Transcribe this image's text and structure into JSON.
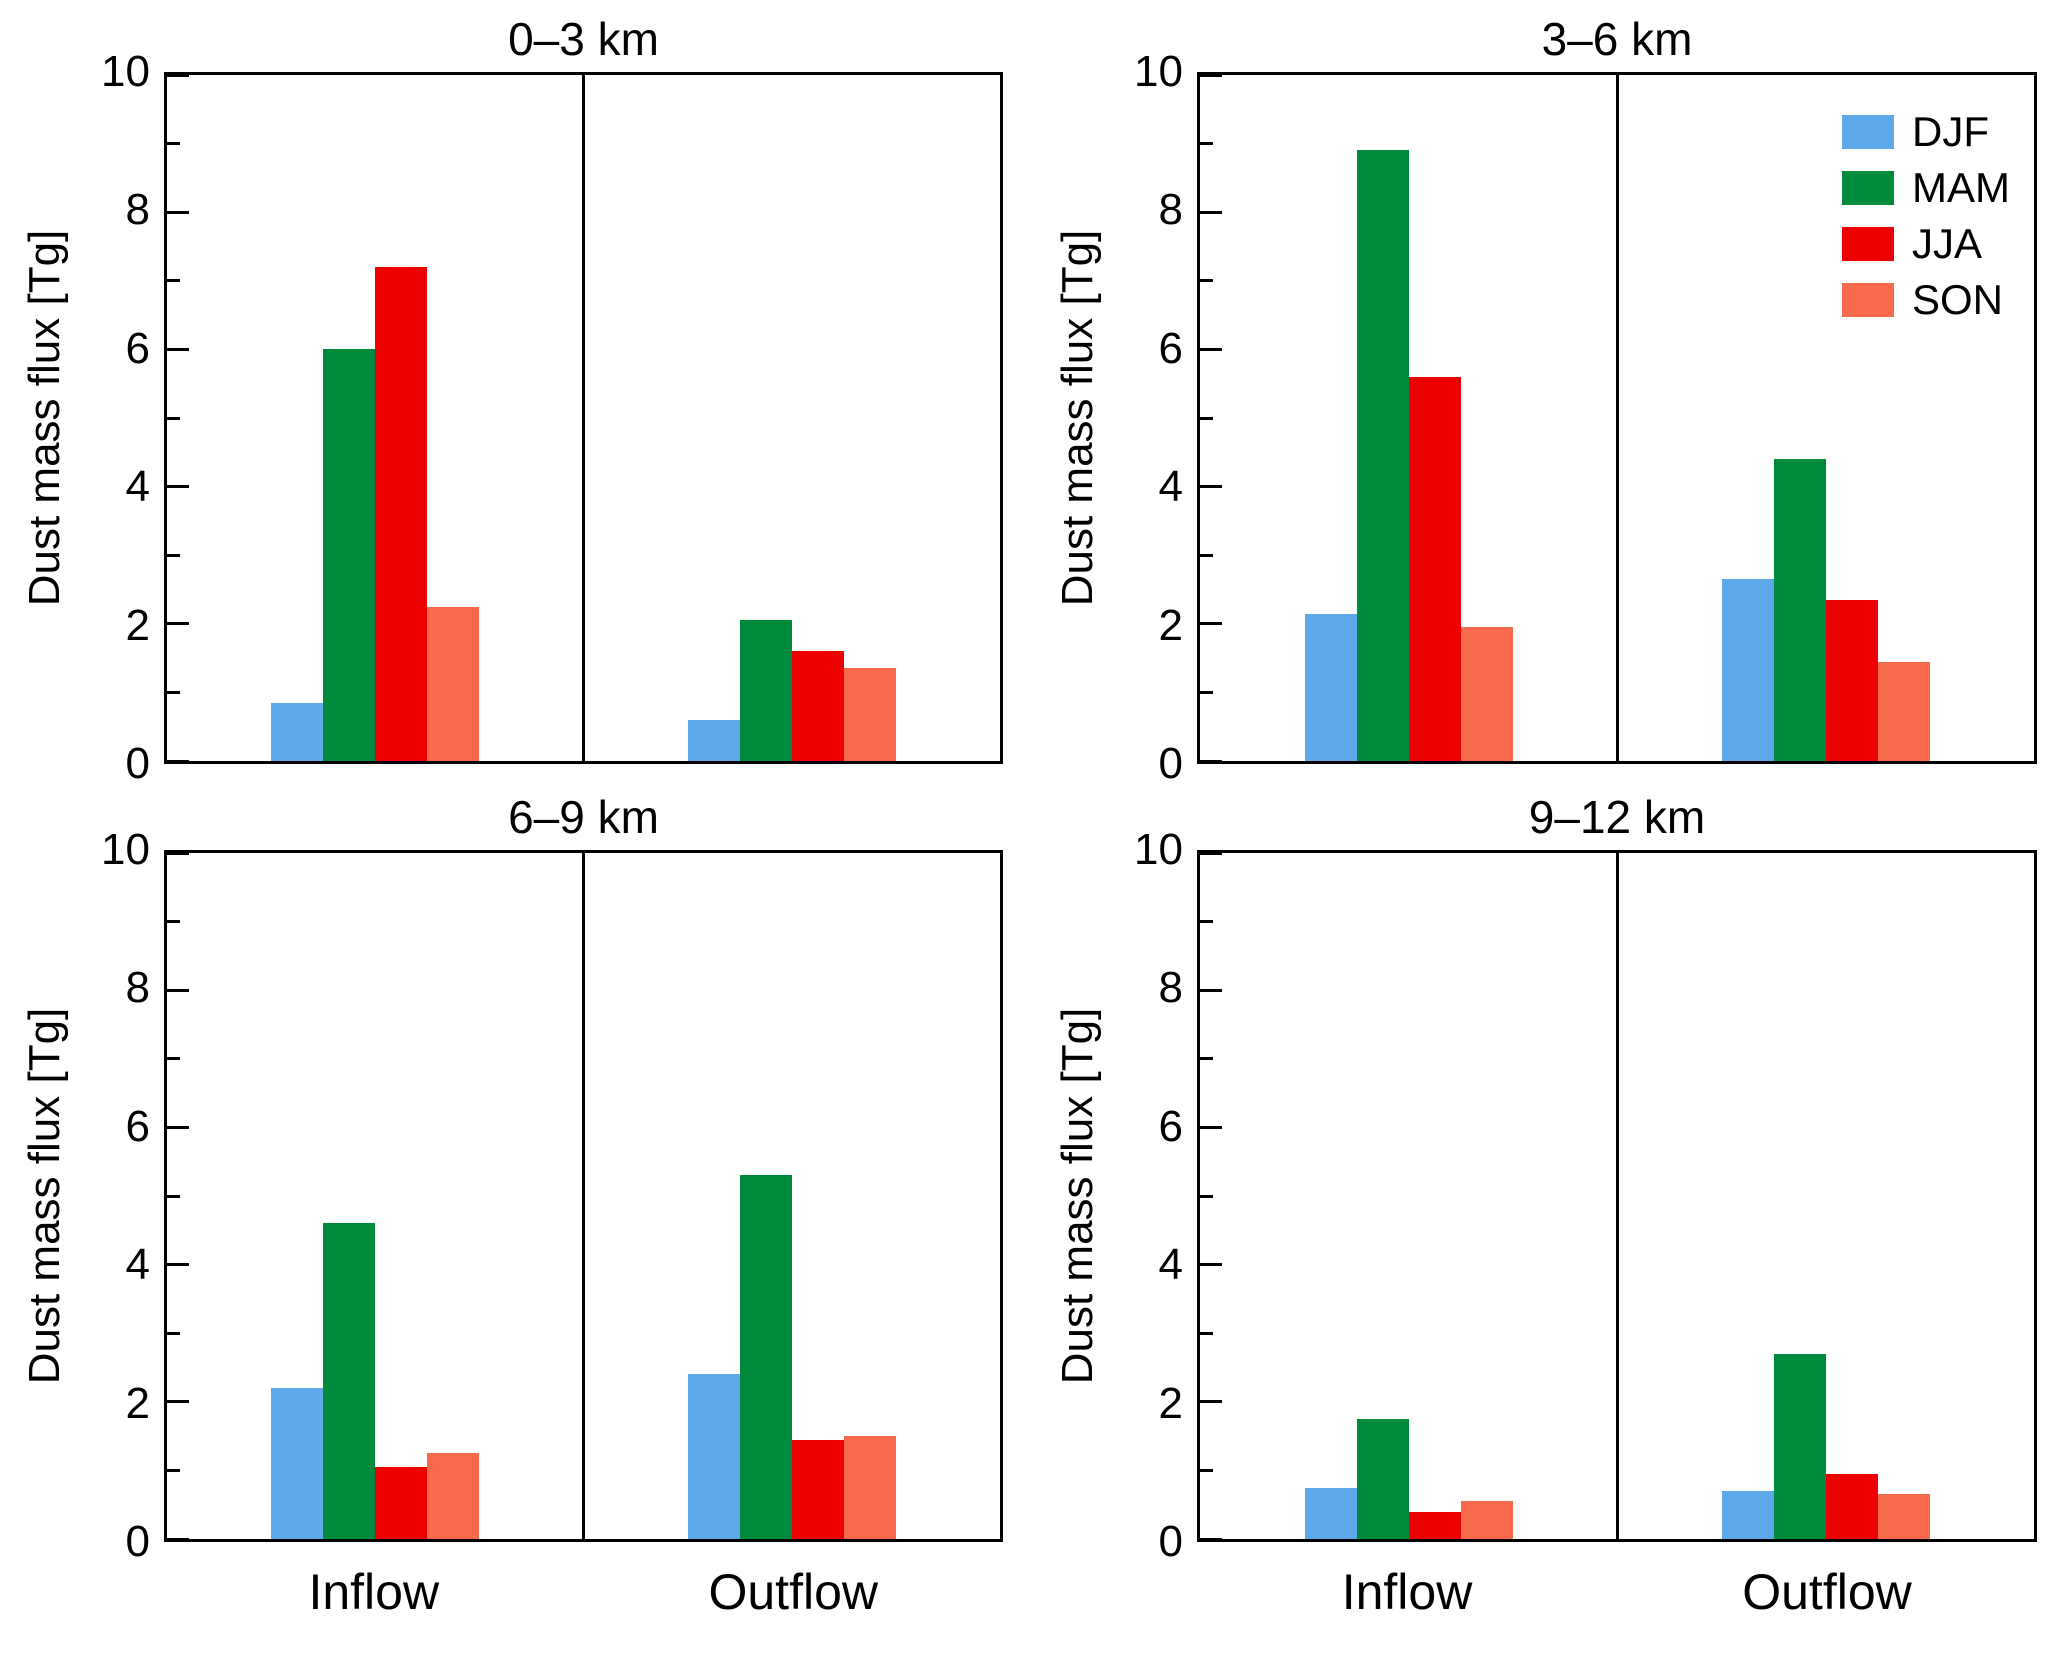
{
  "figure": {
    "ylabel": "Dust mass flux [Tg]",
    "group_labels": [
      "Inflow",
      "Outflow"
    ],
    "legend": [
      {
        "label": "DJF",
        "color": "#5CA8E8"
      },
      {
        "label": "MAM",
        "color": "#008A3C"
      },
      {
        "label": "JJA",
        "color": "#ED0000"
      },
      {
        "label": "SON",
        "color": "#F9694C"
      }
    ]
  },
  "chart_data": [
    {
      "type": "bar",
      "title": "0–3 km",
      "ylabel": "Dust mass flux [Tg]",
      "ylim": [
        0,
        10
      ],
      "yticks": [
        0,
        2,
        4,
        6,
        8,
        10
      ],
      "minor_ticks": [
        1,
        3,
        5,
        7,
        9
      ],
      "grid": false,
      "categories": [
        "Inflow",
        "Outflow"
      ],
      "series": [
        {
          "name": "DJF",
          "color": "#5CA8E8",
          "values": [
            0.85,
            0.6
          ]
        },
        {
          "name": "MAM",
          "color": "#008A3C",
          "values": [
            6.0,
            2.05
          ]
        },
        {
          "name": "JJA",
          "color": "#ED0000",
          "values": [
            7.2,
            1.6
          ]
        },
        {
          "name": "SON",
          "color": "#F9694C",
          "values": [
            2.25,
            1.35
          ]
        }
      ]
    },
    {
      "type": "bar",
      "title": "3–6 km",
      "ylabel": "Dust mass flux [Tg]",
      "ylim": [
        0,
        10
      ],
      "yticks": [
        0,
        2,
        4,
        6,
        8,
        10
      ],
      "minor_ticks": [
        1,
        3,
        5,
        7,
        9
      ],
      "grid": false,
      "legend_position": "top-right",
      "categories": [
        "Inflow",
        "Outflow"
      ],
      "series": [
        {
          "name": "DJF",
          "color": "#5CA8E8",
          "values": [
            2.15,
            2.65
          ]
        },
        {
          "name": "MAM",
          "color": "#008A3C",
          "values": [
            8.9,
            4.4
          ]
        },
        {
          "name": "JJA",
          "color": "#ED0000",
          "values": [
            5.6,
            2.35
          ]
        },
        {
          "name": "SON",
          "color": "#F9694C",
          "values": [
            1.95,
            1.45
          ]
        }
      ]
    },
    {
      "type": "bar",
      "title": "6–9 km",
      "ylabel": "Dust mass flux [Tg]",
      "ylim": [
        0,
        10
      ],
      "yticks": [
        0,
        2,
        4,
        6,
        8,
        10
      ],
      "minor_ticks": [
        1,
        3,
        5,
        7,
        9
      ],
      "grid": false,
      "categories": [
        "Inflow",
        "Outflow"
      ],
      "series": [
        {
          "name": "DJF",
          "color": "#5CA8E8",
          "values": [
            2.2,
            2.4
          ]
        },
        {
          "name": "MAM",
          "color": "#008A3C",
          "values": [
            4.6,
            5.3
          ]
        },
        {
          "name": "JJA",
          "color": "#ED0000",
          "values": [
            1.05,
            1.45
          ]
        },
        {
          "name": "SON",
          "color": "#F9694C",
          "values": [
            1.25,
            1.5
          ]
        }
      ]
    },
    {
      "type": "bar",
      "title": "9–12 km",
      "ylabel": "Dust mass flux [Tg]",
      "ylim": [
        0,
        10
      ],
      "yticks": [
        0,
        2,
        4,
        6,
        8,
        10
      ],
      "minor_ticks": [
        1,
        3,
        5,
        7,
        9
      ],
      "grid": false,
      "categories": [
        "Inflow",
        "Outflow"
      ],
      "series": [
        {
          "name": "DJF",
          "color": "#5CA8E8",
          "values": [
            0.75,
            0.7
          ]
        },
        {
          "name": "MAM",
          "color": "#008A3C",
          "values": [
            1.75,
            2.7
          ]
        },
        {
          "name": "JJA",
          "color": "#ED0000",
          "values": [
            0.4,
            0.95
          ]
        },
        {
          "name": "SON",
          "color": "#F9694C",
          "values": [
            0.55,
            0.65
          ]
        }
      ]
    }
  ]
}
